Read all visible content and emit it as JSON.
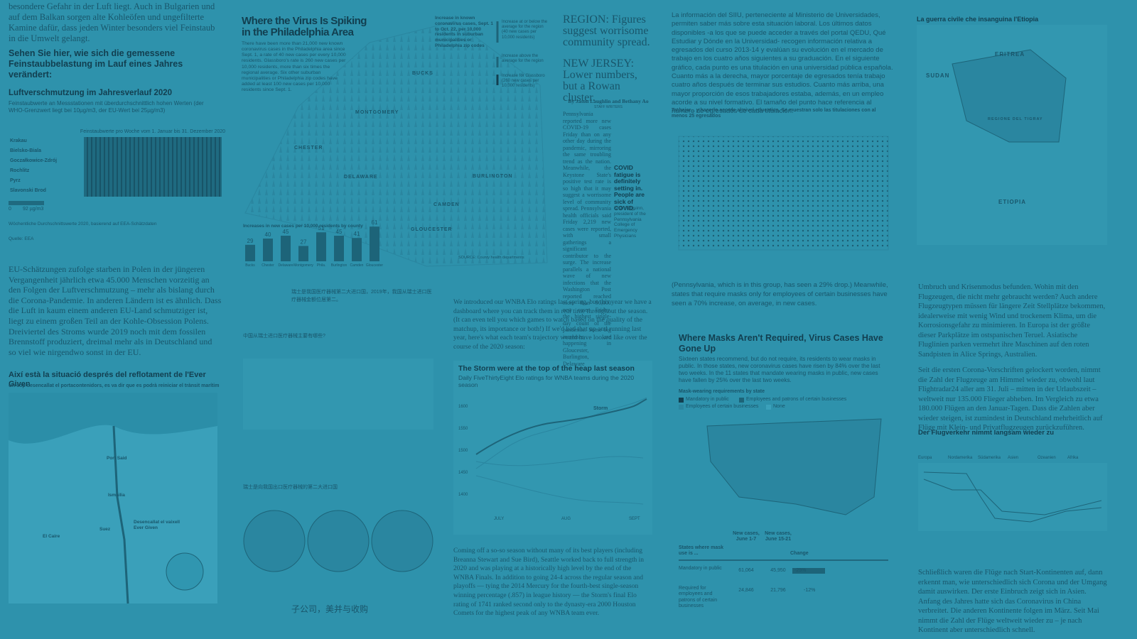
{
  "col1": {
    "intro": "besondere Gefahr in der Luft liegt. Auch in Bulgarien und auf dem Balkan sorgen alte Kohleöfen und ungefilterte Kamine dafür, dass jeden Winter besonders viel Feinstaub in die Umwelt gelangt.",
    "heading": "Sehen Sie hier, wie sich die gemessene Feinstaubbelastung im Lauf eines Jahres verändert:",
    "chart_title": "Luftverschmutzung im Jahresverlauf 2020",
    "chart_subtitle": "Feinstaubwerte an Messstationen mit überdurchschnittlich hohen Werten (der WHO-Grenzwert liegt bei 10µg/m3, der EU-Wert bei 25µg/m3)",
    "heatmap_label": "Feinstaubwerte pro Woche vom 1. Januar bis 31. Dezember 2020",
    "rows": [
      "Krakau",
      "Bielsko-Biala",
      "Goczałkowice-Zdrój",
      "Rochlitz",
      "Pyrz",
      "Slavonski Brod"
    ],
    "legend_min": "0",
    "legend_max": "92 µg/m3",
    "note": "Wöchentliche Durchschnittswerte 2020, basierend auf EEA-Schätzdaten",
    "source": "Quelle: EEA",
    "body": "EU-Schätzungen zufolge starben in Polen in der jüngeren Vergangenheit jährlich etwa 45.000 Menschen vorzeitig an den Folgen der Luftverschmutzung – mehr als bislang durch die Corona-Pandemie. In anderen Ländern ist es ähnlich. Dass die Luft in kaum einem anderen EU-Land schmutziger ist, liegt zu einem großen Teil an der Kohle-Obsession Polens. Dreiviertel des Stroms wurde 2019 noch mit dem fossilen Brennstoff produziert, dreimal mehr als in Deutschland und so viel wie nirgendwo sonst in der EU.",
    "map_title": "Així està la situació després del reflotament de l'Ever Given",
    "map_subtitle": "Un cop desencallat el portacontenidors, es va dir que es podrà reiniciar el trànsit marítim",
    "map_labels": [
      "Port Said",
      "Ismailia",
      "Suez",
      "El Caire",
      "Desencallat el vaixell Ever Given"
    ]
  },
  "col2": {
    "title": "Where the Virus Is Spiking in the Philadelphia Area",
    "intro": "There have been more than 21,000 new known coronavirus cases in the Philadelphia area since Sept. 1, a rate of 40 new cases per every 10,000 residents. Glassboro's rate is 260 new cases per 10,000 residents, more than six times the regional average. Six other suburban municipalities or Philadelphia zip codes have added at least 100 new cases per 10,000 residents since Sept. 1.",
    "legend_title": "Increase in known coronavirus cases, Sept. 1 to Oct. 22, per 10,000 residents in suburban municipalities or Philadelphia zip codes",
    "legend_items": [
      "Increase at or below the average for the region (40 new cases per 10,000 residents)",
      "Increase above the average for the region",
      "Increase for Glassboro (260 new cases per 10,000 residents)"
    ],
    "counties": [
      "BUCKS",
      "MONTGOMERY",
      "CHESTER",
      "DELAWARE",
      "BURLINGTON",
      "CAMDEN",
      "GLOUCESTER"
    ],
    "bars": {
      "title": "Increases in new cases per 10,000 residents by county",
      "categories": [
        "Bucks",
        "Chester",
        "Delaware",
        "Montgomery",
        "Phila.",
        "Burlington",
        "Camden",
        "Gloucester"
      ],
      "values": [
        29,
        40,
        45,
        27,
        51,
        45,
        41,
        61
      ]
    },
    "source": "SOURCE: County health departments",
    "cn_text": "瑞士是我国医疗器械第二大进口国，2019年，我国从瑞士进口医疗器械金额位居第二。",
    "cn_table_title": "中国从瑞士进口医疗器械主要有哪些?",
    "cn_pie_title": "瑞士是向我国出口医疗器械的第二大进口国",
    "cn_bottom": "子公司，美并与收购"
  },
  "col3": {
    "region": "REGION: Figures suggest worrisome community spread.",
    "nj": "NEW JERSEY: Lower numbers, but a Rowan cluster.",
    "byline": "By Jason Laughlin and Bethany Ao",
    "staff": "STAFF WRITERS",
    "article": "Pennsylvania reported more new COVID-19 cases Friday than on any other day during the pandemic, mirroring the same troubling trend as the nation. Meanwhile, the Keystone State's positive test rate is so high that it may suggest a worrisome level of community spread. Pennsylvania health officials said Friday 2,219 new cases were reported, with small gatherings a significant contributor to the surge. The increase parallels a national wave of new infections that the Washington Post reported reached more than 90,000 new cases Friday, the highest single-day count of the pandemic. Some big increases are happening in Gloucester, Burlington, Delaware",
    "quote": "COVID fatigue is definitely setting in. People are sick of COVID.",
    "quote_by": "Sharon Quinn, president of the Pennsylvania College of Emergency Physicians",
    "wnba_intro": "We introduced our WNBA Elo ratings last spring, but this year we have a dashboard where you can track them in real time throughout the season. (It can even tell you which games to watch based on the quality of the matchup, its importance or both!) If we'd had that up and running last year, here's what each team's trajectory would have looked like over the course of the 2020 season:",
    "chart_title": "The Storm were at the top of the heap last season",
    "chart_subtitle": "Daily FiveThirtyEight Elo ratings for WNBA teams during the 2020 season",
    "chart_label": "Storm",
    "yticks": [
      "1600",
      "1550",
      "1500",
      "1450",
      "1400"
    ],
    "xticks": [
      "JULY",
      "AUG",
      "SEPT"
    ],
    "wnba_body": "Coming off a so-so season without many of its best players (including Breanna Stewart and Sue Bird), Seattle worked back to full strength in 2020 and was playing at a historically high level by the end of the WNBA Finals. In addition to going 24-4 across the regular season and playoffs — tying the 2014 Mercury for the fourth-best single-season winning percentage (.857) in league history — the Storm's final Elo rating of 1741 ranked second only to the dynasty-era 2000 Houston Comets for the highest peak of any WNBA team ever."
  },
  "col4": {
    "intro": "La información del SIIU, perteneciente al Ministerio de Universidades, permiten saber más sobre esta situación laboral. Los últimos datos disponibles -a los que se puede acceder a través del portal QEDU, Qué Estudiar y Dónde en la Universidad- recogen información relativa a egresados del curso 2013-14 y evalúan su evolución en el mercado de trabajo en los cuatro años siguientes a su graduación. En el siguiente gráfico, cada punto es una titulación en una universidad pública española. Cuanto más a la derecha, mayor porcentaje de egresados tenía trabajo cuatro años después de terminar sus estudios. Cuanto más arriba, una mayor proporción de esos trabajadores estaba, además, en un empleo acorde a su nivel formativo. El tamaño del punto hace referencia al número de egresados de cada titulación.",
    "scatter_title": "Trabajar... y hacerlo acorde al nivel educativo. Se muestran solo las titulaciones con al menos 25 egresados",
    "pa_text": "(Pennsylvania, which is in this group, has seen a 29% drop.) Meanwhile, states that require masks only for employees of certain businesses have seen a 70% increase, on average, in new cases.",
    "masks_title": "Where Masks Aren't Required, Virus Cases Have Gone Up",
    "masks_text": "Sixteen states recommend, but do not require, its residents to wear masks in public. In those states, new coronavirus cases have risen by 84% over the last two weeks. In the 11 states that mandate wearing masks in public, new cases have fallen by 25% over the last two weeks.",
    "legend_title": "Mask-wearing requirements by state",
    "legend": [
      "Mandatory in public",
      "Employees and patrons of certain businesses",
      "Employees of certain businesses",
      "None"
    ],
    "table": {
      "header": [
        "States where mask use is ...",
        "New cases, June 1-7",
        "New cases, June 15-21",
        "Change"
      ],
      "rows": [
        [
          "Mandatory in public",
          "61,064",
          "45,950",
          "-25%"
        ],
        [
          "Required for employees and patrons of certain businesses",
          "24,846",
          "21,796",
          "-12%"
        ]
      ]
    }
  },
  "col5": {
    "title": "La guerra civile che insanguina l'Etiopia",
    "map_labels": [
      "ERITREA",
      "SUDAN",
      "REGIONE DEL TIGRAY",
      "ETIOPIA"
    ],
    "para1": "Umbruch und Krisenmodus befunden. Wohin mit den Flugzeugen, die nicht mehr gebraucht werden? Auch andere Flugzeugtypen müssen für längere Zeit Stellplätze bekommen, idealerweise mit wenig Wind und trockenem Klima, um die Korrosionsgefahr zu minimieren. In Europa ist der größte dieser Parkplätze im ostspanischen Teruel. Asiatische Fluglinien parken vermehrt ihre Maschinen auf den roten Sandpisten in Alice Springs, Australien.",
    "para2": "Seit die ersten Corona-Vorschriften gelockert worden, nimmt die Zahl der Flugzeuge am Himmel wieder zu, obwohl laut Flightradar24 aller am 31. Juli – mitten in der Urlaubszeit – weltweit nur 135.000 Flieger abheben. Im Vergleich zu etwa 180.000 Flügen an den Januar-Tagen. Dass die Zahlen aber wieder steigen, ist zumindest in Deutschland mehrheitlich auf Flüge mit Klein- und Privatflugzeugen zurückzuführen.",
    "chart_title": "Der Flugverkehr nimmt langsam wieder zu",
    "legend": [
      "Europa",
      "Nordamerika",
      "Südamerika",
      "Asien",
      "Ozeanien",
      "Afrika"
    ],
    "para3": "Schließlich waren die Flüge nach Start-Kontinenten auf, dann erkennt man, wie unterschiedlich sich Corona und der Umgang damit auswirken. Der erste Einbruch zeigt sich in Asien. Anfang des Jahres hatte sich das Coronavirus in China verbreitet. Die anderen Kontinente folgen im März. Seit Mai nimmt die Zahl der Flüge weltweit wieder zu – je nach Kontinent aber unterschiedlich schnell."
  }
}
